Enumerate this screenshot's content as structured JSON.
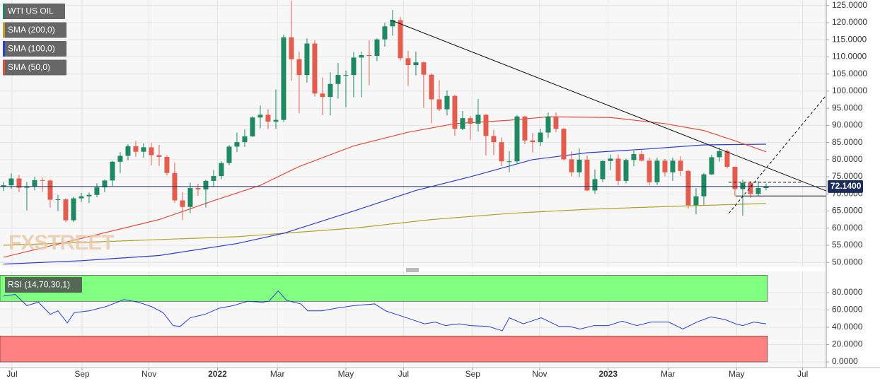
{
  "chart_data": [
    {
      "type": "candlestick",
      "name": "WTI US OIL",
      "watermark": "FXSTREET",
      "up_color": "#1e8a62",
      "down_color": "#e35d4f",
      "open": [
        72.0,
        72.5,
        74.5,
        71.8,
        72.1,
        74.0,
        73.9,
        68.3,
        68.4,
        62.3,
        68.7,
        69.3,
        69.7,
        71.9,
        73.9,
        79.4,
        81.1,
        83.9,
        82.3,
        83.6,
        81.3,
        80.8,
        76.1,
        68.1,
        66.2,
        71.7,
        71.3,
        73.8,
        75.2,
        79.0,
        83.8,
        85.1,
        86.8,
        92.3,
        93.1,
        91.1,
        91.6,
        115.7,
        109.3,
        104.7,
        113.9,
        99.3,
        98.3,
        102.1,
        104.7,
        104.7,
        109.8,
        110.5,
        110.3,
        115.1,
        118.9,
        120.7,
        109.6,
        107.6,
        108.4,
        104.8,
        97.6,
        94.7,
        98.6,
        89.0,
        92.1,
        90.5,
        93.1,
        86.9,
        85.1,
        79.5,
        79.5,
        92.6,
        85.6,
        85.1,
        87.9,
        92.6,
        89.0,
        80.1,
        76.3,
        80.0,
        71.0,
        74.3,
        79.6,
        80.3,
        73.8,
        79.9,
        81.6,
        79.7,
        73.4,
        79.7,
        76.3,
        79.7,
        76.7,
        66.7,
        69.3,
        75.7,
        80.7,
        82.5,
        77.9,
        71.4,
        73.2,
        70.0,
        71.7
      ],
      "high": [
        73.5,
        76.0,
        75.5,
        73.5,
        75.0,
        74.8,
        74.2,
        69.7,
        68.7,
        69.2,
        70.3,
        70.4,
        73.1,
        74.2,
        79.6,
        82.2,
        84.5,
        85.4,
        84.8,
        84.9,
        84.3,
        81.3,
        79.1,
        70.5,
        73.3,
        72.9,
        74.1,
        77.0,
        79.5,
        84.3,
        87.9,
        88.8,
        92.7,
        95.8,
        94.7,
        100.5,
        116.5,
        126.4,
        111.5,
        115.4,
        114.8,
        104.0,
        105.5,
        108.2,
        106.0,
        111.4,
        111.5,
        114.8,
        115.4,
        120.0,
        123.7,
        121.7,
        111.8,
        111.5,
        108.7,
        105.2,
        103.2,
        100.2,
        98.9,
        94.2,
        92.8,
        97.7,
        93.3,
        88.7,
        86.5,
        82.5,
        93.0,
        92.8,
        87.8,
        89.0,
        93.7,
        93.7,
        89.3,
        82.4,
        83.3,
        81.2,
        77.1,
        79.8,
        81.5,
        81.5,
        80.3,
        82.6,
        82.7,
        80.6,
        80.6,
        80.2,
        80.6,
        81.0,
        77.1,
        71.7,
        76.1,
        81.4,
        83.5,
        83.0,
        78.0,
        74.2,
        73.8,
        73.7,
        73.0
      ],
      "low": [
        70.8,
        71.5,
        70.5,
        65.2,
        71.0,
        70.6,
        66.0,
        65.0,
        61.7,
        61.8,
        67.6,
        67.3,
        69.0,
        70.5,
        72.3,
        76.1,
        79.8,
        80.8,
        80.6,
        78.3,
        78.2,
        75.4,
        67.4,
        62.4,
        64.4,
        69.4,
        66.0,
        72.0,
        74.3,
        78.3,
        82.2,
        83.7,
        86.6,
        89.1,
        88.9,
        89.0,
        91.0,
        103.0,
        93.5,
        102.5,
        98.4,
        93.0,
        92.9,
        97.8,
        95.3,
        98.2,
        98.2,
        101.7,
        108.8,
        113.0,
        116.2,
        108.9,
        101.5,
        104.6,
        95.1,
        90.6,
        94.2,
        92.9,
        87.0,
        88.6,
        85.7,
        88.2,
        81.2,
        81.3,
        78.1,
        76.3,
        79.0,
        84.5,
        82.1,
        84.0,
        86.3,
        88.0,
        79.8,
        75.1,
        74.9,
        70.8,
        70.1,
        73.5,
        76.9,
        72.5,
        73.1,
        78.1,
        79.5,
        72.5,
        72.6,
        75.1,
        73.8,
        75.3,
        65.7,
        64.1,
        66.8,
        75.5,
        79.4,
        77.4,
        69.3,
        63.6,
        68.8,
        69.3,
        71.0
      ],
      "close": [
        72.5,
        74.5,
        71.8,
        72.1,
        74.0,
        73.9,
        68.3,
        68.4,
        62.3,
        68.7,
        69.3,
        69.7,
        71.9,
        73.9,
        79.4,
        81.1,
        83.9,
        82.3,
        83.6,
        81.3,
        80.8,
        76.1,
        68.1,
        66.2,
        71.7,
        71.3,
        73.8,
        75.2,
        79.0,
        83.8,
        85.1,
        86.8,
        92.3,
        93.1,
        91.1,
        91.6,
        115.7,
        109.3,
        104.7,
        113.9,
        99.3,
        98.3,
        102.1,
        104.7,
        104.7,
        109.8,
        110.5,
        110.3,
        115.1,
        118.9,
        120.7,
        109.6,
        107.6,
        108.4,
        104.8,
        97.6,
        94.7,
        98.6,
        89.0,
        92.1,
        90.5,
        93.1,
        86.9,
        85.1,
        79.5,
        79.5,
        92.6,
        85.6,
        85.1,
        87.9,
        92.6,
        89.0,
        80.1,
        76.3,
        80.0,
        71.0,
        74.3,
        79.6,
        80.3,
        73.8,
        79.9,
        81.6,
        79.7,
        73.4,
        79.7,
        76.3,
        79.7,
        76.7,
        66.7,
        69.3,
        75.7,
        80.7,
        82.5,
        77.9,
        71.4,
        73.2,
        70.0,
        71.7,
        72.1
      ],
      "series": [
        {
          "name": "SMA (200,0)",
          "color": "#b5a22a",
          "x": [
            0,
            30,
            45,
            55,
            65,
            75,
            85,
            98
          ],
          "values": [
            55.0,
            57.5,
            60.0,
            62.5,
            64.3,
            65.5,
            66.3,
            67.2
          ]
        },
        {
          "name": "SMA (100,0)",
          "color": "#2a3fd0",
          "x": [
            0,
            10,
            20,
            30,
            36,
            45,
            53,
            60,
            68,
            75,
            82,
            90,
            98
          ],
          "values": [
            49.5,
            50.5,
            52.0,
            55.5,
            58.5,
            65.0,
            71.0,
            75.0,
            80.0,
            82.0,
            83.0,
            84.3,
            84.5
          ]
        },
        {
          "name": "SMA (50,0)",
          "color": "#e84b3c",
          "x": [
            0,
            10,
            20,
            27,
            33,
            38,
            45,
            52,
            58,
            65,
            70,
            78,
            85,
            90,
            94,
            98
          ],
          "values": [
            51.5,
            57.0,
            62.5,
            68.0,
            72.5,
            78.0,
            84.0,
            88.0,
            90.5,
            91.5,
            92.5,
            92.3,
            90.5,
            88.5,
            85.5,
            82.3
          ]
        }
      ],
      "last_price": {
        "value": 72.14,
        "label": "72.1400"
      },
      "trendlines": [
        {
          "x": [
            49.7,
            105.7
          ],
          "y": [
            120.8,
            70.9
          ],
          "dashed": false
        },
        {
          "x": [
            93.2,
            105.7
          ],
          "y": [
            64.3,
            98.7
          ],
          "dashed": true
        },
        {
          "x": [
            94.1,
            105.7
          ],
          "y": [
            69.4,
            69.4
          ],
          "dashed": false
        },
        {
          "x": [
            93.2,
            102.7
          ],
          "y": [
            73.4,
            73.4
          ],
          "dashed": true
        }
      ],
      "ylim": [
        48.6,
        126.6
      ],
      "yticks": [
        {
          "value": 125,
          "label": "125.0000"
        },
        {
          "value": 120,
          "label": "120.0000"
        },
        {
          "value": 115,
          "label": "115.0000"
        },
        {
          "value": 110,
          "label": "110.0000"
        },
        {
          "value": 105,
          "label": "105.0000"
        },
        {
          "value": 100,
          "label": "100.0000"
        },
        {
          "value": 95,
          "label": "95.0000"
        },
        {
          "value": 90,
          "label": "90.0000"
        },
        {
          "value": 85,
          "label": "85.0000"
        },
        {
          "value": 80,
          "label": "80.0000"
        },
        {
          "value": 75,
          "label": "75.0000"
        },
        {
          "value": 70,
          "label": "70.0000"
        },
        {
          "value": 65,
          "label": "65.0000"
        },
        {
          "value": 60,
          "label": "60.0000"
        },
        {
          "value": 55,
          "label": "55.0000"
        },
        {
          "value": 50,
          "label": "50.0000"
        }
      ],
      "grid": true
    },
    {
      "type": "line",
      "series": [
        {
          "name": "RSI (14,70,30,1)",
          "color": "#2a3fd0",
          "x": [
            0,
            1.5,
            3,
            4.5,
            6,
            7,
            8.2,
            9.1,
            11,
            13.2,
            15.5,
            17.3,
            19,
            20.5,
            21.8,
            22.7,
            24,
            25.9,
            27.7,
            29.5,
            31.4,
            33.2,
            34.1,
            35.3,
            36.4,
            38.2,
            39.1,
            40.9,
            42.7,
            45,
            47.7,
            49.1,
            51.8,
            54.1,
            55.5,
            56.8,
            58.6,
            60,
            62.3,
            64.1,
            65,
            66.8,
            69.1,
            71.4,
            72.7,
            74.1,
            75.9,
            77.7,
            79.5,
            81.4,
            83.2,
            85.5,
            87.3,
            89.1,
            90.9,
            92.7,
            94.1,
            95,
            96.4,
            98
          ],
          "values": [
            76,
            78,
            65,
            69,
            55,
            59,
            45,
            57,
            59,
            64,
            72,
            69,
            64,
            57,
            42,
            41,
            51,
            55,
            62,
            65,
            70,
            69,
            70,
            82,
            71,
            67,
            59,
            59,
            62,
            65,
            67,
            59,
            51,
            44,
            46,
            42,
            44,
            42,
            41,
            36,
            51,
            44,
            51,
            41,
            41,
            38,
            42,
            42,
            47,
            42,
            46,
            46,
            38,
            46,
            52,
            49,
            44,
            42,
            46,
            44
          ]
        }
      ],
      "bands": [
        {
          "from": 70,
          "to": 100,
          "color": "#80ff80"
        },
        {
          "from": 0,
          "to": 30,
          "color": "#ff8080"
        }
      ],
      "ylim": [
        -6.5,
        104.5
      ],
      "yticks": [
        {
          "value": 80,
          "label": "80.0000"
        },
        {
          "value": 60,
          "label": "60.0000"
        },
        {
          "value": 40,
          "label": "40.0000"
        },
        {
          "value": 20,
          "label": "20.0000"
        },
        {
          "value": 0,
          "label": "0.0000"
        }
      ],
      "xlim": [
        -0.45,
        105.73
      ],
      "xticks": [
        {
          "value": 1.09,
          "label": "Jul"
        },
        {
          "value": 10.1,
          "label": "Sep"
        },
        {
          "value": 18.7,
          "label": "Nov"
        },
        {
          "value": 27.5,
          "label": "2022"
        },
        {
          "value": 35.2,
          "label": "Mar"
        },
        {
          "value": 44.0,
          "label": "May"
        },
        {
          "value": 51.4,
          "label": "Jul"
        },
        {
          "value": 60.3,
          "label": "Sep"
        },
        {
          "value": 68.9,
          "label": "Nov"
        },
        {
          "value": 77.7,
          "label": "2023"
        },
        {
          "value": 85.4,
          "label": "Mar"
        },
        {
          "value": 94.2,
          "label": "May"
        },
        {
          "value": 102.7,
          "label": "Jul"
        }
      ],
      "grid": true
    }
  ]
}
